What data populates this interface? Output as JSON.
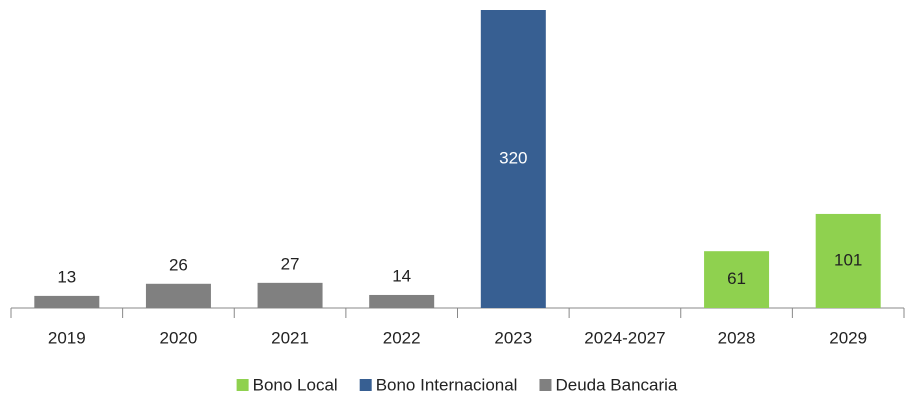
{
  "chart_data": {
    "type": "bar",
    "stacked": true,
    "categories": [
      "2019",
      "2020",
      "2021",
      "2022",
      "2023",
      "2024-2027",
      "2028",
      "2029"
    ],
    "series": [
      {
        "name": "Bono Local",
        "color": "#8fd14f",
        "values": [
          null,
          null,
          null,
          null,
          null,
          null,
          61,
          101
        ]
      },
      {
        "name": "Bono Internacional",
        "color": "#375f92",
        "values": [
          null,
          null,
          null,
          null,
          320,
          null,
          null,
          null
        ]
      },
      {
        "name": "Deuda Bancaria",
        "color": "#808080",
        "values": [
          13,
          26,
          27,
          14,
          null,
          null,
          null,
          null
        ]
      }
    ],
    "legend": "bottom"
  }
}
